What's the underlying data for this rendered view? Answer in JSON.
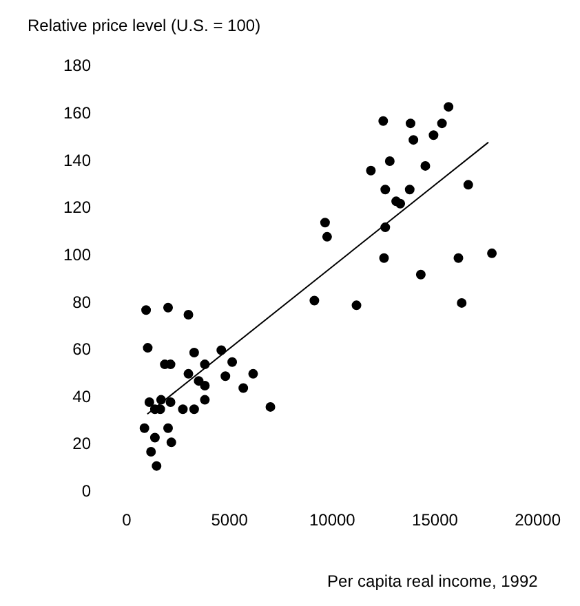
{
  "chart_data": {
    "type": "scatter",
    "ylabel": "Relative price level (U.S. = 100)",
    "xlabel": "Per capita real income, 1992",
    "xlim": [
      0,
      20000
    ],
    "xticks": [
      0,
      5000,
      10000,
      15000,
      20000
    ],
    "ylim": [
      0,
      180
    ],
    "yticks": [
      0,
      20,
      40,
      60,
      80,
      100,
      120,
      140,
      160,
      180
    ],
    "grid": false,
    "legend": false,
    "marker": "circle",
    "series": [
      {
        "type": "scatter",
        "color": "#000000",
        "x": [
          940,
          2010,
          3000,
          1020,
          1850,
          2130,
          3280,
          4600,
          3800,
          3000,
          3500,
          3800,
          3800,
          5130,
          4800,
          6150,
          5670,
          6990,
          1100,
          1670,
          2130,
          1370,
          1630,
          2730,
          3280,
          860,
          2010,
          1370,
          2170,
          1180,
          1450,
          9130,
          11180,
          16300,
          12520,
          14310,
          16140,
          17770,
          9650,
          9750,
          12480,
          13810,
          15660,
          15340,
          14930,
          13950,
          11880,
          12800,
          14530,
          12580,
          13770,
          13110,
          13310,
          12580,
          16620
        ],
        "values": [
          77,
          78,
          75,
          61,
          54,
          54,
          59,
          60,
          54,
          50,
          47,
          45,
          39,
          55,
          49,
          50,
          44,
          36,
          38,
          39,
          38,
          35,
          35,
          35,
          35,
          27,
          27,
          23,
          21,
          17,
          11,
          81,
          79,
          80,
          99,
          92,
          99,
          101,
          114,
          108,
          157,
          156,
          163,
          156,
          151,
          149,
          136,
          140,
          138,
          128,
          128,
          123,
          122,
          112,
          130
        ]
      },
      {
        "type": "line",
        "color": "#000000",
        "marker": "none",
        "x": [
          1000,
          17600
        ],
        "values": [
          33,
          148
        ]
      }
    ]
  }
}
